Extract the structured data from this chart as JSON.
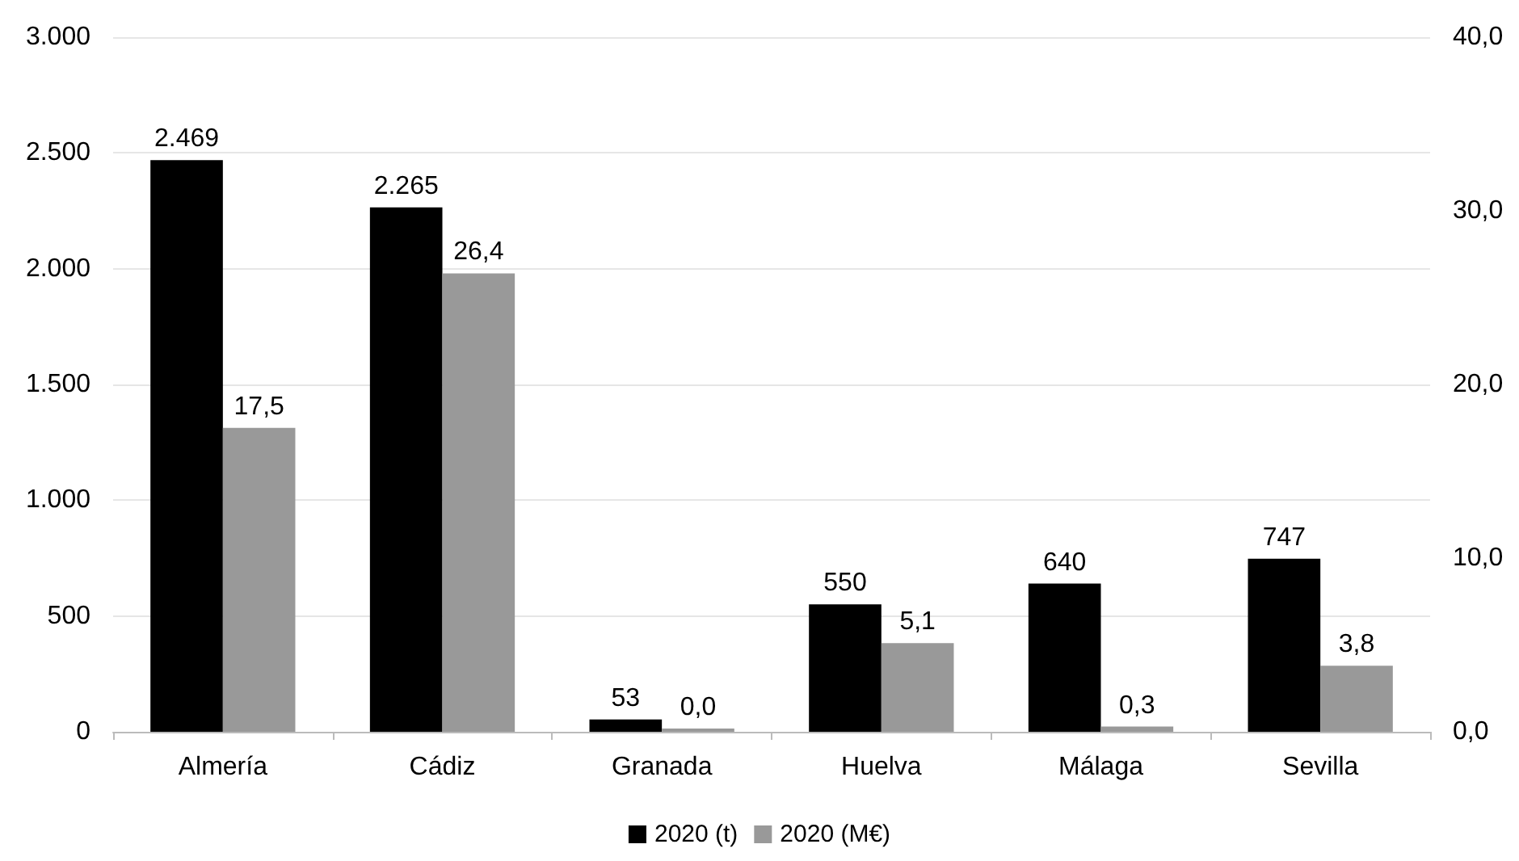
{
  "chart_data": {
    "type": "bar",
    "categories": [
      "Almería",
      "Cádiz",
      "Granada",
      "Huelva",
      "Málaga",
      "Sevilla"
    ],
    "series": [
      {
        "name": "2020 (t)",
        "color": "#000000",
        "values": [
          2469,
          2265,
          53,
          550,
          640,
          747
        ],
        "value_labels": [
          "2.469",
          "2.265",
          "53",
          "550",
          "640",
          "747"
        ]
      },
      {
        "name": "2020 (M€)",
        "color": "#999999",
        "axis": "y2",
        "values": [
          17.5,
          26.4,
          0.0,
          5.1,
          0.3,
          3.8
        ],
        "value_labels": [
          "17,5",
          "26,4",
          "0,0",
          "5,1",
          "0,3",
          "3,8"
        ]
      }
    ],
    "ylim": [
      0,
      3000
    ],
    "yticks": [
      {
        "value": 0,
        "label": "0"
      },
      {
        "value": 500,
        "label": "500"
      },
      {
        "value": 1000,
        "label": "1.000"
      },
      {
        "value": 1500,
        "label": "1.500"
      },
      {
        "value": 2000,
        "label": "2.000"
      },
      {
        "value": 2500,
        "label": "2.500"
      },
      {
        "value": 3000,
        "label": "3.000"
      }
    ],
    "y2lim": [
      0,
      40
    ],
    "y2ticks": [
      {
        "value": 0,
        "label": "0,0"
      },
      {
        "value": 10,
        "label": "10,0"
      },
      {
        "value": 20,
        "label": "20,0"
      },
      {
        "value": 30,
        "label": "30,0"
      },
      {
        "value": 40,
        "label": "40,0"
      }
    ],
    "grid": "y",
    "legend": "bottom"
  }
}
